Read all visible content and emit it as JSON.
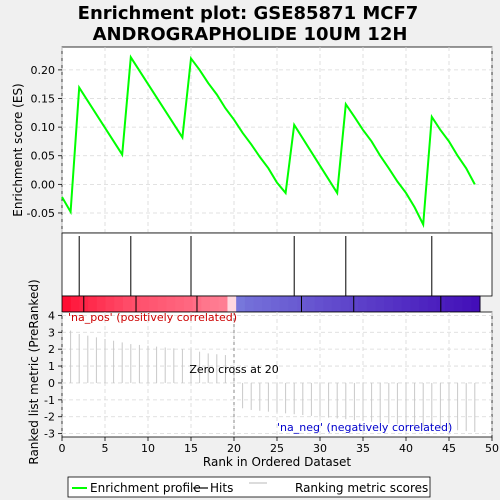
{
  "chart_data": {
    "type": "line",
    "title_line1": "Enrichment plot: GSE85871 MCF7",
    "title_line2": "ANDROGRAPHOLIDE 10UM 12H",
    "es_panel": {
      "ylabel": "Enrichment score (ES)",
      "ylim": [
        -0.085,
        0.24
      ],
      "yticks": [
        "0.20",
        "0.15",
        "0.10",
        "0.05",
        "0.00",
        "-0.05"
      ],
      "ytick_values": [
        0.2,
        0.15,
        0.1,
        0.05,
        0.0,
        -0.05
      ],
      "series": [
        {
          "name": "Enrichment profile",
          "color": "#00ff00",
          "x": [
            0,
            1,
            2,
            7,
            8,
            14,
            15,
            16,
            17,
            18,
            19,
            20,
            21,
            22,
            23,
            24,
            25,
            26,
            27,
            32,
            33,
            34,
            35,
            36,
            37,
            38,
            39,
            40,
            41,
            42,
            43,
            44,
            45,
            46,
            47,
            48
          ],
          "y": [
            -0.022,
            -0.048,
            0.169,
            0.052,
            0.222,
            0.082,
            0.22,
            0.2,
            0.177,
            0.157,
            0.133,
            0.113,
            0.09,
            0.07,
            0.048,
            0.028,
            0.003,
            -0.015,
            0.104,
            -0.015,
            0.14,
            0.118,
            0.095,
            0.075,
            0.05,
            0.028,
            0.005,
            -0.015,
            -0.04,
            -0.07,
            0.118,
            0.095,
            0.075,
            0.05,
            0.028,
            0.0
          ]
        }
      ]
    },
    "hits_panel": {
      "hit_positions": [
        2,
        8,
        15,
        27,
        33,
        43
      ],
      "hit_color": "#000000"
    },
    "ranking_panel": {
      "ylabel": "Ranked list metric (PreRanked)",
      "xlabel": "Rank in Ordered Dataset",
      "xlim": [
        0,
        50
      ],
      "xticks": [
        "0",
        "5",
        "10",
        "15",
        "20",
        "25",
        "30",
        "35",
        "40",
        "45",
        "50"
      ],
      "xtick_values": [
        0,
        5,
        10,
        15,
        20,
        25,
        30,
        35,
        40,
        45,
        50
      ],
      "ylim": [
        -3.2,
        4.2
      ],
      "yticks": [
        "4",
        "3",
        "2",
        "1",
        "0",
        "-1",
        "-2",
        "-3"
      ],
      "ytick_values": [
        4,
        3,
        2,
        1,
        0,
        -1,
        -2,
        -3
      ],
      "bar_color": "#c8c8c8",
      "values": [
        3.1,
        2.9,
        2.8,
        2.7,
        2.6,
        2.5,
        2.4,
        2.3,
        2.25,
        2.2,
        2.15,
        2.1,
        2.05,
        2.0,
        1.95,
        1.85,
        1.75,
        1.7,
        1.65,
        0.5,
        -1.5,
        -1.6,
        -1.65,
        -1.7,
        -1.75,
        -1.8,
        -1.85,
        -1.9,
        -1.95,
        -2.0,
        -2.05,
        -2.1,
        -2.15,
        -2.2,
        -2.25,
        -2.3,
        -2.35,
        -2.4,
        -2.45,
        -2.5,
        -2.55,
        -2.6,
        -2.65,
        -2.7,
        -2.75,
        -2.8,
        -2.85,
        -2.9
      ],
      "zero_cross_label": "Zero cross at 20",
      "zero_cross_x": 20,
      "pos_label": "'na_pos' (positively correlated)",
      "neg_label": "'na_neg' (negatively correlated)",
      "pos_color": "#cc0000",
      "neg_color": "#0000cc"
    },
    "legend": {
      "items": [
        {
          "label": "Enrichment profile",
          "color": "#00ff00"
        },
        {
          "label": "Hits",
          "color": "#000000"
        },
        {
          "label": "Ranking metric scores",
          "color": "#c8c8c8"
        }
      ]
    }
  }
}
